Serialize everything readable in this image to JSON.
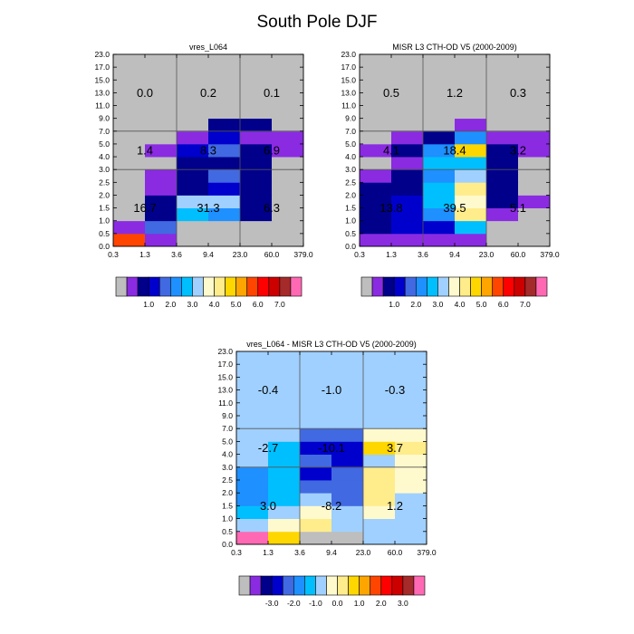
{
  "title": "South Pole DJF",
  "chart_data": [
    {
      "type": "heatmap",
      "id": "model",
      "title": "vres_L064",
      "x_ticks": [
        "0.3",
        "1.3",
        "3.6",
        "9.4",
        "23.0",
        "60.0",
        "379.0"
      ],
      "y_ticks": [
        "0.0",
        "0.5",
        "1.0",
        "1.5",
        "2.0",
        "2.5",
        "3.0",
        "4.0",
        "5.0",
        "7.0",
        "9.0",
        "11.0",
        "13.0",
        "15.0",
        "17.0",
        "23.0"
      ],
      "regions": [
        {
          "label": "0.0",
          "row": 2,
          "col": 0
        },
        {
          "label": "0.2",
          "row": 2,
          "col": 1
        },
        {
          "label": "0.1",
          "row": 2,
          "col": 2
        },
        {
          "label": "1.4",
          "row": 1,
          "col": 0
        },
        {
          "label": "8.3",
          "row": 1,
          "col": 1
        },
        {
          "label": "6.9",
          "row": 1,
          "col": 2
        },
        {
          "label": "16.7",
          "row": 0,
          "col": 0
        },
        {
          "label": "31.3",
          "row": 0,
          "col": 1
        },
        {
          "label": "6.3",
          "row": 0,
          "col": 2
        }
      ],
      "cells": [
        [
          12,
          1,
          0,
          0,
          0,
          0
        ],
        [
          1,
          4,
          0,
          0,
          0,
          0
        ],
        [
          0,
          2,
          6,
          5,
          2,
          0
        ],
        [
          0,
          2,
          7,
          7,
          2,
          0
        ],
        [
          0,
          1,
          2,
          3,
          2,
          0
        ],
        [
          0,
          1,
          2,
          4,
          2,
          0
        ],
        [
          0,
          0,
          2,
          2,
          2,
          0
        ],
        [
          0,
          1,
          3,
          4,
          2,
          1
        ],
        [
          0,
          0,
          1,
          3,
          1,
          1
        ],
        [
          0,
          0,
          0,
          2,
          2,
          0
        ],
        [
          0,
          0,
          0,
          0,
          0,
          0
        ],
        [
          0,
          0,
          0,
          0,
          0,
          0
        ],
        [
          0,
          0,
          0,
          0,
          0,
          0
        ],
        [
          0,
          0,
          0,
          0,
          0,
          0
        ],
        [
          0,
          0,
          0,
          0,
          0,
          0
        ]
      ],
      "colorbar_labels": [
        "1.0",
        "2.0",
        "3.0",
        "4.0",
        "5.0",
        "6.0",
        "7.0"
      ]
    },
    {
      "type": "heatmap",
      "id": "obs",
      "title": "MISR L3 CTH-OD V5 (2000-2009)",
      "x_ticks": [
        "0.3",
        "1.3",
        "3.6",
        "9.4",
        "23.0",
        "60.0",
        "379.0"
      ],
      "y_ticks": [
        "0.0",
        "0.5",
        "1.0",
        "1.5",
        "2.0",
        "2.5",
        "3.0",
        "4.0",
        "5.0",
        "7.0",
        "9.0",
        "11.0",
        "13.0",
        "15.0",
        "17.0",
        "23.0"
      ],
      "regions": [
        {
          "label": "0.5",
          "row": 2,
          "col": 0
        },
        {
          "label": "1.2",
          "row": 2,
          "col": 1
        },
        {
          "label": "0.3",
          "row": 2,
          "col": 2
        },
        {
          "label": "4.1",
          "row": 1,
          "col": 0
        },
        {
          "label": "18.4",
          "row": 1,
          "col": 1
        },
        {
          "label": "3.2",
          "row": 1,
          "col": 2
        },
        {
          "label": "13.8",
          "row": 0,
          "col": 0
        },
        {
          "label": "39.5",
          "row": 0,
          "col": 1
        },
        {
          "label": "5.1",
          "row": 0,
          "col": 2
        }
      ],
      "cells": [
        [
          1,
          1,
          1,
          1,
          0,
          0
        ],
        [
          2,
          3,
          3,
          6,
          0,
          0
        ],
        [
          2,
          3,
          5,
          9,
          1,
          0
        ],
        [
          2,
          3,
          6,
          8,
          2,
          1
        ],
        [
          2,
          2,
          6,
          9,
          2,
          0
        ],
        [
          1,
          2,
          5,
          7,
          2,
          0
        ],
        [
          0,
          1,
          6,
          6,
          2,
          0
        ],
        [
          1,
          2,
          5,
          10,
          2,
          1
        ],
        [
          0,
          1,
          2,
          5,
          1,
          1
        ],
        [
          0,
          0,
          0,
          1,
          0,
          0
        ],
        [
          0,
          0,
          0,
          0,
          0,
          0
        ],
        [
          0,
          0,
          0,
          0,
          0,
          0
        ],
        [
          0,
          0,
          0,
          0,
          0,
          0
        ],
        [
          0,
          0,
          0,
          0,
          0,
          0
        ],
        [
          0,
          0,
          0,
          0,
          0,
          0
        ]
      ],
      "colorbar_labels": [
        "1.0",
        "2.0",
        "3.0",
        "4.0",
        "5.0",
        "6.0",
        "7.0"
      ]
    },
    {
      "type": "heatmap",
      "id": "diff",
      "title": "vres_L064 - MISR L3 CTH-OD V5 (2000-2009)",
      "x_ticks": [
        "0.3",
        "1.3",
        "3.6",
        "9.4",
        "23.0",
        "60.0",
        "379.0"
      ],
      "y_ticks": [
        "0.0",
        "0.5",
        "1.0",
        "1.5",
        "2.0",
        "2.5",
        "3.0",
        "4.0",
        "5.0",
        "7.0",
        "9.0",
        "11.0",
        "13.0",
        "15.0",
        "17.0",
        "23.0"
      ],
      "regions": [
        {
          "label": "-0.4",
          "row": 2,
          "col": 0
        },
        {
          "label": "-1.0",
          "row": 2,
          "col": 1
        },
        {
          "label": "-0.3",
          "row": 2,
          "col": 2
        },
        {
          "label": "-2.7",
          "row": 1,
          "col": 0
        },
        {
          "label": "-10.1",
          "row": 1,
          "col": 1
        },
        {
          "label": "3.7",
          "row": 1,
          "col": 2
        },
        {
          "label": "3.0",
          "row": 0,
          "col": 0
        },
        {
          "label": "-8.2",
          "row": 0,
          "col": 1
        },
        {
          "label": "1.2",
          "row": 0,
          "col": 2
        }
      ],
      "cells": [
        [
          16,
          10,
          0,
          0,
          7,
          7
        ],
        [
          7,
          8,
          9,
          7,
          7,
          7
        ],
        [
          6,
          7,
          8,
          7,
          8,
          7
        ],
        [
          5,
          6,
          7,
          4,
          9,
          7
        ],
        [
          5,
          6,
          4,
          4,
          9,
          8
        ],
        [
          5,
          6,
          3,
          4,
          9,
          8
        ],
        [
          7,
          6,
          4,
          3,
          7,
          8
        ],
        [
          7,
          6,
          3,
          3,
          10,
          9
        ],
        [
          7,
          7,
          4,
          4,
          8,
          8
        ],
        [
          7,
          7,
          7,
          7,
          7,
          7
        ],
        [
          7,
          7,
          7,
          7,
          7,
          7
        ],
        [
          7,
          7,
          7,
          7,
          7,
          7
        ],
        [
          7,
          7,
          7,
          7,
          7,
          7
        ],
        [
          7,
          7,
          7,
          7,
          7,
          7
        ],
        [
          7,
          7,
          7,
          7,
          7,
          7
        ]
      ],
      "colorbar_labels": [
        "-3.0",
        "-2.0",
        "-1.0",
        "0.0",
        "1.0",
        "2.0",
        "3.0"
      ]
    }
  ],
  "palette": [
    "#bebebe",
    "#8a2be2",
    "#00008b",
    "#0000cd",
    "#4169e1",
    "#1e90ff",
    "#00bfff",
    "#a0d0ff",
    "#fffacd",
    "#ffec8b",
    "#ffd700",
    "#ffa500",
    "#ff4500",
    "#ff0000",
    "#cd0000",
    "#a52a2a",
    "#ff69b4"
  ]
}
